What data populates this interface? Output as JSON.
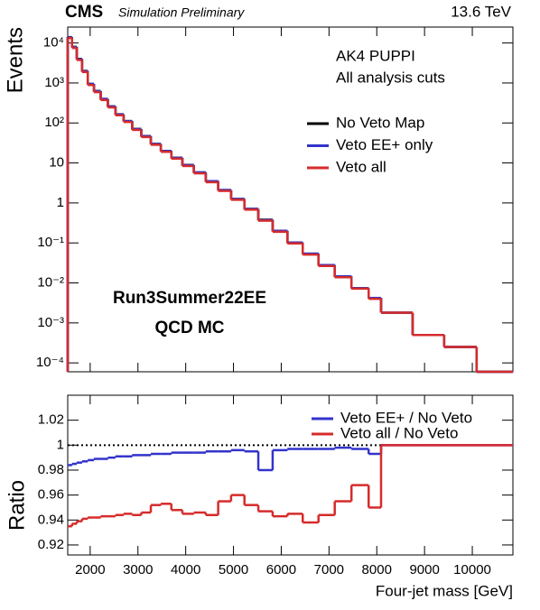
{
  "chart_data": [
    {
      "type": "histogram",
      "experiment": "CMS",
      "subtitle": "Simulation Preliminary",
      "energy": "13.6 TeV",
      "ylabel": "Events",
      "log_y": true,
      "legend": "upper right",
      "annotations": [
        "AK4 PUPPI",
        "All analysis cuts",
        "Run3Summer22EE",
        "QCD MC"
      ],
      "bins": [
        1530,
        1620,
        1720,
        1830,
        1950,
        2080,
        2220,
        2370,
        2530,
        2700,
        2880,
        3070,
        3270,
        3480,
        3700,
        3930,
        4170,
        4420,
        4680,
        4950,
        5230,
        5520,
        5820,
        6130,
        6450,
        6780,
        7120,
        7470,
        7830,
        8090,
        8750,
        9410,
        10090,
        10850
      ],
      "series": [
        {
          "name": "No Veto Map",
          "color": "#000000",
          "values": [
            14000,
            8000,
            4000,
            2000,
            950,
            630,
            400,
            260,
            165,
            112,
            71,
            47,
            30,
            20,
            13.5,
            8.9,
            5.8,
            3.5,
            2.1,
            1.26,
            0.71,
            0.38,
            0.2,
            0.102,
            0.054,
            0.028,
            0.0145,
            0.0074,
            0.0042,
            0.0018,
            0.0005,
            0.00025,
            0
          ]
        },
        {
          "name": "Veto EE+ only",
          "color": "#3333cc",
          "values": [
            13800,
            7900,
            3940,
            1970,
            940,
            620,
            396,
            257,
            163,
            111,
            70,
            46.6,
            29.8,
            19.9,
            13.4,
            8.8,
            5.8,
            3.5,
            2.1,
            1.25,
            0.71,
            0.37,
            0.2,
            0.102,
            0.054,
            0.028,
            0.0145,
            0.0074,
            0.0042,
            0.0018,
            0.0005,
            0.00025,
            0
          ]
        },
        {
          "name": "Veto all",
          "color": "#d62b2b",
          "values": [
            13300,
            7500,
            3760,
            1880,
            890,
            590,
            375,
            245,
            156,
            106,
            67,
            44.5,
            28.5,
            19,
            12.8,
            8.4,
            5.5,
            3.3,
            2,
            1.2,
            0.68,
            0.36,
            0.19,
            0.097,
            0.051,
            0.0265,
            0.0139,
            0.0072,
            0.004,
            0.0018,
            0.0005,
            0.00025,
            0
          ]
        }
      ],
      "xlim": [
        1530,
        10850
      ],
      "ylim": [
        6e-05,
        25000
      ],
      "yticks": [
        {
          "value": 10000,
          "label": "10⁴"
        },
        {
          "value": 1000,
          "label": "10³"
        },
        {
          "value": 100,
          "label": "10²"
        },
        10,
        1,
        {
          "value": 0.1,
          "label": "10⁻¹"
        },
        {
          "value": 0.01,
          "label": "10⁻²"
        },
        {
          "value": 0.001,
          "label": "10⁻³"
        },
        {
          "value": 0.0001,
          "label": "10⁻⁴"
        }
      ]
    },
    {
      "type": "histogram",
      "ylabel": "Ratio",
      "xlabel": "Four-jet mass [GeV]",
      "ref_line": 1,
      "bins": [
        1530,
        1620,
        1720,
        1830,
        1950,
        2080,
        2220,
        2370,
        2530,
        2700,
        2880,
        3070,
        3270,
        3480,
        3700,
        3930,
        4170,
        4420,
        4680,
        4950,
        5230,
        5520,
        5820,
        6130,
        6450,
        6780,
        7120,
        7470,
        7830,
        8090,
        8750,
        9410,
        10090,
        10850
      ],
      "series": [
        {
          "name": "Veto EE+ / No Veto",
          "color": "#3333cc",
          "values": [
            0.984,
            0.985,
            0.986,
            0.987,
            0.988,
            0.989,
            0.989,
            0.99,
            0.991,
            0.991,
            0.992,
            0.992,
            0.993,
            0.993,
            0.994,
            0.994,
            0.994,
            0.995,
            0.995,
            0.996,
            0.995,
            0.98,
            0.996,
            0.997,
            0.997,
            0.997,
            0.998,
            0.997,
            0.993,
            1,
            1,
            1,
            1
          ]
        },
        {
          "name": "Veto all / No Veto",
          "color": "#d62b2b",
          "values": [
            0.935,
            0.937,
            0.939,
            0.941,
            0.942,
            0.942,
            0.943,
            0.943,
            0.944,
            0.945,
            0.944,
            0.946,
            0.952,
            0.953,
            0.948,
            0.945,
            0.946,
            0.944,
            0.955,
            0.96,
            0.952,
            0.947,
            0.943,
            0.945,
            0.938,
            0.944,
            0.955,
            0.968,
            0.95,
            1,
            1,
            1,
            1
          ]
        }
      ],
      "xlim": [
        1530,
        10850
      ],
      "ylim": [
        0.912,
        1.04
      ],
      "xticks": [
        2000,
        3000,
        4000,
        5000,
        6000,
        7000,
        8000,
        9000,
        10000
      ],
      "yticks": [
        0.92,
        0.94,
        0.96,
        0.98,
        1,
        1.02
      ]
    }
  ]
}
